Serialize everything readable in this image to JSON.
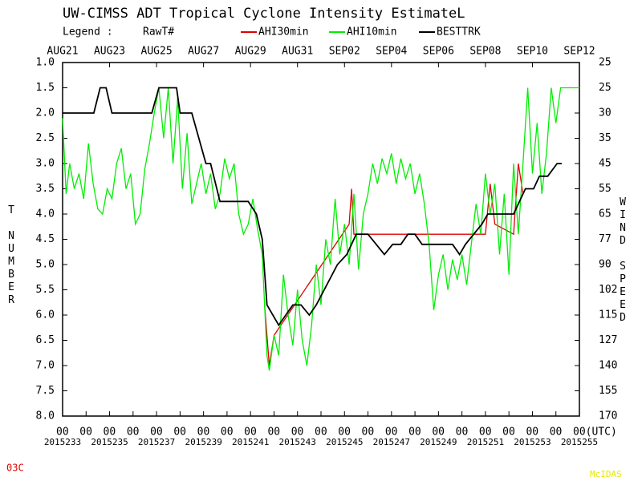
{
  "chart_data": {
    "type": "line",
    "title": "UW-CIMSS ADT Tropical Cyclone Intensity EstimateL",
    "legend_label": "Legend :",
    "legend_subtitle": "RawT#",
    "y_label": "T NUMBER",
    "y2_label": "WIND SPEED",
    "storm_id": "03C",
    "footer": "McIDAS",
    "xlim": [
      2015233,
      2015255
    ],
    "xticks": [
      2015233,
      2015235,
      2015237,
      2015239,
      2015241,
      2015243,
      2015245,
      2015247,
      2015249,
      2015251,
      2015253,
      2015255
    ],
    "date_ticks": [
      {
        "value": 2015233,
        "label": "AUG21"
      },
      {
        "value": 2015235,
        "label": "AUG23"
      },
      {
        "value": 2015237,
        "label": "AUG25"
      },
      {
        "value": 2015239,
        "label": "AUG27"
      },
      {
        "value": 2015241,
        "label": "AUG29"
      },
      {
        "value": 2015243,
        "label": "AUG31"
      },
      {
        "value": 2015245,
        "label": "SEP02"
      },
      {
        "value": 2015247,
        "label": "SEP04"
      },
      {
        "value": 2015249,
        "label": "SEP06"
      },
      {
        "value": 2015251,
        "label": "SEP08"
      },
      {
        "value": 2015253,
        "label": "SEP10"
      },
      {
        "value": 2015255,
        "label": "SEP12"
      }
    ],
    "hour_ticks": [
      {
        "value": 2015233,
        "label": "00"
      },
      {
        "value": 2015234,
        "label": "00"
      },
      {
        "value": 2015235,
        "label": "00"
      },
      {
        "value": 2015236,
        "label": "00"
      },
      {
        "value": 2015237,
        "label": "00"
      },
      {
        "value": 2015238,
        "label": "00"
      },
      {
        "value": 2015239,
        "label": "00"
      },
      {
        "value": 2015240,
        "label": "00"
      },
      {
        "value": 2015241,
        "label": "00"
      },
      {
        "value": 2015242,
        "label": "00"
      },
      {
        "value": 2015243,
        "label": "00"
      },
      {
        "value": 2015244,
        "label": "00"
      },
      {
        "value": 2015245,
        "label": "00"
      },
      {
        "value": 2015246,
        "label": "00"
      },
      {
        "value": 2015247,
        "label": "00"
      },
      {
        "value": 2015248,
        "label": "00"
      },
      {
        "value": 2015249,
        "label": "00"
      },
      {
        "value": 2015250,
        "label": "00"
      },
      {
        "value": 2015251,
        "label": "00"
      },
      {
        "value": 2015252,
        "label": "00"
      },
      {
        "value": 2015253,
        "label": "00"
      },
      {
        "value": 2015254,
        "label": "00"
      },
      {
        "value": 2015255,
        "label": "00(UTC)"
      }
    ],
    "ylim": [
      1,
      8
    ],
    "y_inverted": true,
    "yticks": [
      {
        "value": 1,
        "label": "1.0"
      },
      1.5,
      {
        "value": 2,
        "label": "2.0"
      },
      2.5,
      {
        "value": 3,
        "label": "3.0"
      },
      3.5,
      {
        "value": 4,
        "label": "4.0"
      },
      4.5,
      {
        "value": 5,
        "label": "5.0"
      },
      5.5,
      {
        "value": 6,
        "label": "6.0"
      },
      6.5,
      {
        "value": 7,
        "label": "7.0"
      },
      7.5,
      {
        "value": 8,
        "label": "8.0"
      }
    ],
    "wind_speed_labels": [
      25,
      25,
      30,
      35,
      45,
      55,
      65,
      77,
      90,
      102,
      115,
      127,
      140,
      155,
      170
    ],
    "series": [
      {
        "name": "AHI30min",
        "color": "#e00000",
        "x": [
          2015241.6,
          2015241.8,
          2015242.0,
          2015245.2,
          2015245.3,
          2015245.4,
          2015251.0,
          2015251.2,
          2015251.4,
          2015252.2,
          2015252.4,
          2015252.6
        ],
        "values": [
          5.8,
          7.0,
          6.4,
          4.2,
          3.5,
          4.4,
          4.4,
          3.4,
          4.2,
          4.4,
          3.0,
          3.6
        ]
      },
      {
        "name": "AHI10min",
        "color": "#00ee00",
        "x": [
          2015233,
          2015233.15,
          2015233.3,
          2015233.5,
          2015233.7,
          2015233.9,
          2015234.1,
          2015234.3,
          2015234.5,
          2015234.7,
          2015234.9,
          2015235.1,
          2015235.3,
          2015235.5,
          2015235.7,
          2015235.9,
          2015236.1,
          2015236.3,
          2015236.5,
          2015236.7,
          2015236.9,
          2015237.1,
          2015237.3,
          2015237.5,
          2015237.7,
          2015237.9,
          2015238.1,
          2015238.3,
          2015238.5,
          2015238.7,
          2015238.9,
          2015239.1,
          2015239.3,
          2015239.5,
          2015239.7,
          2015239.9,
          2015240.1,
          2015240.3,
          2015240.5,
          2015240.7,
          2015240.9,
          2015241.1,
          2015241.3,
          2015241.5,
          2015241.6,
          2015241.7,
          2015241.8,
          2015242.0,
          2015242.2,
          2015242.4,
          2015242.6,
          2015242.8,
          2015243.0,
          2015243.2,
          2015243.4,
          2015243.6,
          2015243.8,
          2015244.0,
          2015244.2,
          2015244.4,
          2015244.6,
          2015244.8,
          2015245.0,
          2015245.2,
          2015245.4,
          2015245.6,
          2015245.8,
          2015246.0,
          2015246.2,
          2015246.4,
          2015246.6,
          2015246.8,
          2015247.0,
          2015247.2,
          2015247.4,
          2015247.6,
          2015247.8,
          2015248.0,
          2015248.2,
          2015248.4,
          2015248.6,
          2015248.8,
          2015249.0,
          2015249.2,
          2015249.4,
          2015249.6,
          2015249.8,
          2015250.0,
          2015250.2,
          2015250.4,
          2015250.6,
          2015250.8,
          2015251.0,
          2015251.2,
          2015251.4,
          2015251.6,
          2015251.8,
          2015252.0,
          2015252.2,
          2015252.4,
          2015252.6,
          2015252.8,
          2015253.0,
          2015253.2,
          2015253.4,
          2015253.6,
          2015253.8,
          2015254.0,
          2015254.2,
          2015255.0
        ],
        "values": [
          2.1,
          3.6,
          3.0,
          3.5,
          3.2,
          3.7,
          2.6,
          3.4,
          3.9,
          4.0,
          3.5,
          3.7,
          3.0,
          2.7,
          3.5,
          3.2,
          4.2,
          4.0,
          3.1,
          2.6,
          2.0,
          1.5,
          2.5,
          1.5,
          3.0,
          1.7,
          3.5,
          2.4,
          3.8,
          3.4,
          3.0,
          3.6,
          3.2,
          3.9,
          3.6,
          2.9,
          3.3,
          3.0,
          4.0,
          4.4,
          4.2,
          3.7,
          4.3,
          4.8,
          5.8,
          6.8,
          7.1,
          6.4,
          6.8,
          5.2,
          6.0,
          6.6,
          5.5,
          6.5,
          7.0,
          6.2,
          5.0,
          5.8,
          4.5,
          5.0,
          3.7,
          4.8,
          4.2,
          5.0,
          3.6,
          5.1,
          4.0,
          3.6,
          3.0,
          3.4,
          2.9,
          3.2,
          2.8,
          3.4,
          2.9,
          3.3,
          3.0,
          3.6,
          3.2,
          3.8,
          4.6,
          5.9,
          5.2,
          4.8,
          5.5,
          4.9,
          5.3,
          4.8,
          5.4,
          4.6,
          3.8,
          4.4,
          3.2,
          4.0,
          3.4,
          4.8,
          3.6,
          5.2,
          3.0,
          4.4,
          3.0,
          1.5,
          3.2,
          2.2,
          3.6,
          2.8,
          1.5,
          2.2,
          1.5,
          1.5
        ]
      },
      {
        "name": "BESTTRK",
        "color": "#000000",
        "x": [
          2015233,
          2015234.33,
          2015234.6,
          2015234.85,
          2015235.1,
          2015236.8,
          2015237.1,
          2015237.85,
          2015238.0,
          2015238.5,
          2015239.1,
          2015239.3,
          2015239.7,
          2015240.9,
          2015241.25,
          2015241.5,
          2015241.7,
          2015242.2,
          2015242.8,
          2015243.15,
          2015243.5,
          2015243.8,
          2015244.7,
          2015245.1,
          2015245.5,
          2015246.0,
          2015246.35,
          2015246.7,
          2015247.05,
          2015247.4,
          2015247.7,
          2015248.0,
          2015248.3,
          2015249.6,
          2015249.9,
          2015250.15,
          2015250.85,
          2015251.1,
          2015252.2,
          2015252.7,
          2015253.05,
          2015253.3,
          2015253.65,
          2015254.05,
          2015254.25
        ],
        "values": [
          2.0,
          2.0,
          1.5,
          1.5,
          2.0,
          2.0,
          1.5,
          1.5,
          2.0,
          2.0,
          3.0,
          3.0,
          3.75,
          3.75,
          4.0,
          4.5,
          5.8,
          6.2,
          5.8,
          5.8,
          6.0,
          5.8,
          5.0,
          4.8,
          4.4,
          4.4,
          4.6,
          4.8,
          4.6,
          4.6,
          4.4,
          4.4,
          4.6,
          4.6,
          4.8,
          4.6,
          4.2,
          4.0,
          4.0,
          3.5,
          3.5,
          3.25,
          3.25,
          3.0,
          3.0
        ]
      }
    ]
  }
}
